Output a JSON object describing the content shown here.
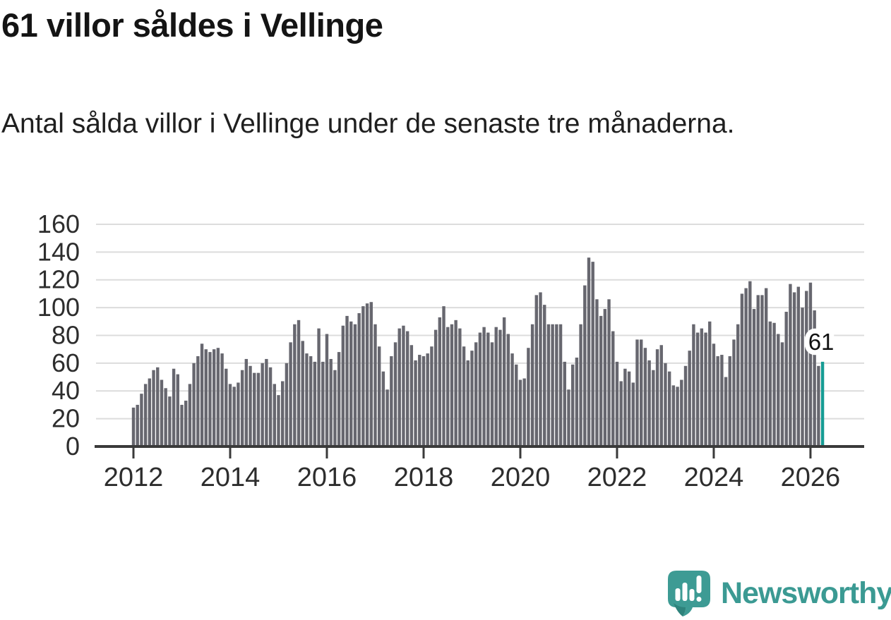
{
  "title": "61 villor såldes i Vellinge",
  "subtitle": "Antal sålda villor i Vellinge under de senaste tre månaderna.",
  "annotation": {
    "highlight_label": "61"
  },
  "branding": {
    "name": "Newsworthy"
  },
  "colors": {
    "bar": "#67676f",
    "highlight": "#169c94",
    "grid": "#dcdcdc",
    "axis": "#3a3a3a",
    "tick_text": "#2d2d2d",
    "label_text": "#111111",
    "brand": "#3b9a93"
  },
  "chart_data": {
    "type": "bar",
    "title": "61 villor såldes i Vellinge",
    "subtitle": "Antal sålda villor i Vellinge under de senaste tre månaderna.",
    "xlabel": "",
    "ylabel": "",
    "x_start": "2012-01",
    "x_end": "2026-04",
    "frequency": "monthly",
    "x_tick_labels": [
      "2012",
      "2014",
      "2016",
      "2018",
      "2020",
      "2022",
      "2024",
      "2026"
    ],
    "y_ticks": [
      0,
      20,
      40,
      60,
      80,
      100,
      120,
      140,
      160
    ],
    "ylim": [
      0,
      160
    ],
    "grid": "horizontal",
    "legend": "none",
    "highlight_index": 171,
    "highlight_value": 61,
    "values": [
      28,
      30,
      38,
      45,
      49,
      55,
      57,
      48,
      42,
      36,
      56,
      52,
      30,
      33,
      45,
      60,
      65,
      74,
      70,
      68,
      70,
      71,
      67,
      56,
      45,
      43,
      46,
      55,
      63,
      58,
      53,
      53,
      60,
      63,
      57,
      45,
      37,
      47,
      60,
      75,
      88,
      91,
      76,
      67,
      65,
      61,
      85,
      61,
      81,
      63,
      55,
      68,
      87,
      94,
      90,
      88,
      96,
      101,
      103,
      104,
      88,
      72,
      54,
      41,
      65,
      75,
      85,
      87,
      83,
      73,
      62,
      66,
      65,
      67,
      72,
      84,
      93,
      101,
      86,
      88,
      91,
      85,
      72,
      62,
      69,
      75,
      82,
      86,
      82,
      75,
      86,
      84,
      93,
      81,
      67,
      59,
      48,
      49,
      71,
      88,
      109,
      111,
      102,
      88,
      88,
      88,
      88,
      61,
      41,
      59,
      64,
      88,
      116,
      136,
      133,
      106,
      94,
      99,
      106,
      83,
      61,
      47,
      56,
      54,
      46,
      77,
      77,
      71,
      62,
      55,
      70,
      73,
      60,
      54,
      44,
      43,
      48,
      58,
      69,
      88,
      82,
      85,
      82,
      90,
      74,
      65,
      66,
      50,
      65,
      77,
      88,
      110,
      114,
      119,
      99,
      109,
      109,
      114,
      90,
      89,
      81,
      75,
      97,
      117,
      111,
      115,
      100,
      112,
      118,
      98,
      58,
      61
    ]
  }
}
